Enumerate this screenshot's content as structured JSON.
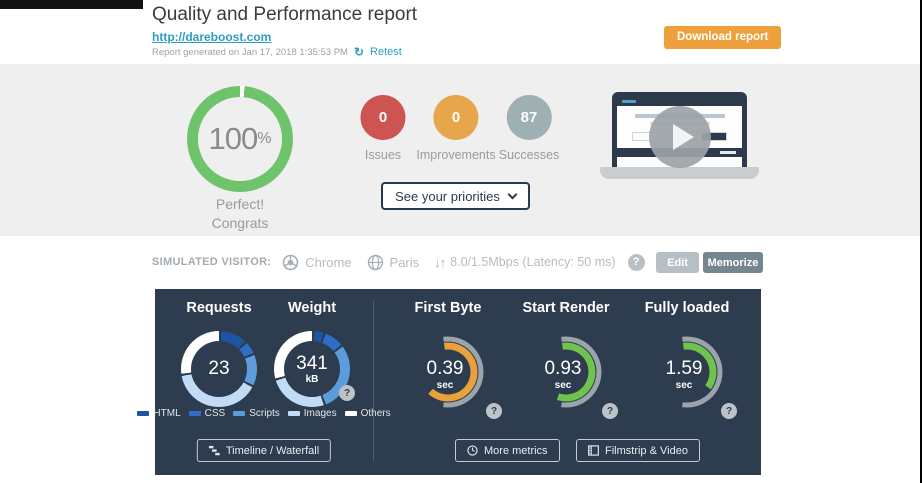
{
  "header": {
    "title": "Quality and Performance report",
    "url": "http://dareboost.com",
    "generated": "Report generated on Jan 17, 2018 1:35:53 PM",
    "retest_icon": "↻",
    "retest_label": "Retest",
    "download_label": "Download report",
    "download_color": "#eea03c"
  },
  "score": {
    "value": "100",
    "percent": "%",
    "message_line1": "Perfect!",
    "message_line2": "Congrats",
    "ring_color": "#6fc36b",
    "notch_color": "#ffffff"
  },
  "counters": [
    {
      "value": "0",
      "label": "Issues",
      "color": "#cd5451"
    },
    {
      "value": "0",
      "label": "Improvements",
      "color": "#e8a64b"
    },
    {
      "value": "87",
      "label": "Successes",
      "color": "#9fb0b4"
    }
  ],
  "priorities_button": {
    "label": "See your priorities"
  },
  "simulated_visitor": {
    "label": "SIMULATED VISITOR:",
    "browser": "Chrome",
    "location": "Paris",
    "arrows": "↓↑",
    "bandwidth": "8.0/1.5Mbps (Latency: 50 ms)",
    "help": "?",
    "edit_label": "Edit",
    "edit_color": "#b5bfc4",
    "memorize_label": "Memorize",
    "memorize_color": "#75868e"
  },
  "panel": {
    "background": "#2d3c4e",
    "timeline_button": "Timeline / Waterfall",
    "more_metrics_button": "More metrics",
    "filmstrip_button": "Filmstrip & Video",
    "help": "?",
    "legend": [
      {
        "label": "HTML",
        "color": "#1d55a5"
      },
      {
        "label": "CSS",
        "color": "#2f6ec4"
      },
      {
        "label": "Scripts",
        "color": "#5d9cdb"
      },
      {
        "label": "Images",
        "color": "#c3dcf5"
      },
      {
        "label": "Others",
        "color": "#ffffff"
      }
    ]
  },
  "chart_data": [
    {
      "type": "pie",
      "id": "requests",
      "title": "Requests",
      "center_value": "23",
      "unit": "",
      "segments": [
        {
          "label": "HTML",
          "pct": 12,
          "color": "#1d55a5"
        },
        {
          "label": "CSS",
          "pct": 6,
          "color": "#2f6ec4"
        },
        {
          "label": "Scripts",
          "pct": 14,
          "color": "#5d9cdb"
        },
        {
          "label": "Images",
          "pct": 40,
          "color": "#c3dcf5"
        },
        {
          "label": "Others",
          "pct": 28,
          "color": "#ffffff"
        }
      ]
    },
    {
      "type": "pie",
      "id": "weight",
      "title": "Weight",
      "center_value": "341",
      "unit": "kB",
      "segments": [
        {
          "label": "HTML",
          "pct": 5,
          "color": "#1d55a5"
        },
        {
          "label": "CSS",
          "pct": 9,
          "color": "#2f6ec4"
        },
        {
          "label": "Scripts",
          "pct": 30,
          "color": "#5d9cdb"
        },
        {
          "label": "Images",
          "pct": 26,
          "color": "#c3dcf5"
        },
        {
          "label": "Others",
          "pct": 30,
          "color": "#ffffff"
        }
      ]
    },
    {
      "type": "gauge",
      "id": "first-byte",
      "title": "First Byte",
      "value": "0.39",
      "unit": "sec",
      "color": "#e9a23b",
      "track_color": "#9ba4ab",
      "track_start": -8,
      "track_end": 188,
      "value_start": -8,
      "value_end": 222
    },
    {
      "type": "gauge",
      "id": "start-render",
      "title": "Start Render",
      "value": "0.93",
      "unit": "sec",
      "color": "#6fc24c",
      "track_color": "#9ba4ab",
      "track_start": -8,
      "track_end": 188,
      "value_start": -8,
      "value_end": 198
    },
    {
      "type": "gauge",
      "id": "fully-loaded",
      "title": "Fully loaded",
      "value": "1.59",
      "unit": "sec",
      "color": "#6fc24c",
      "track_color": "#9ba4ab",
      "track_start": -8,
      "track_end": 188,
      "value_start": -8,
      "value_end": 126
    }
  ]
}
